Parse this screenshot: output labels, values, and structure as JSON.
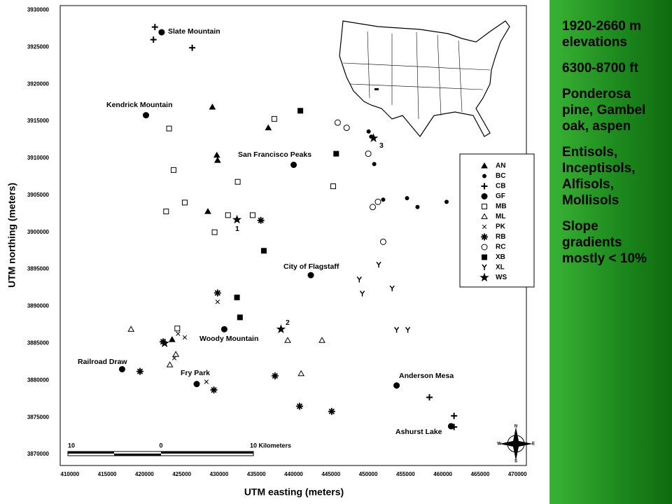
{
  "chart_data": {
    "type": "scatter",
    "xlabel": "UTM easting (meters)",
    "ylabel": "UTM northing (meters)",
    "xlim": [
      408700,
      471200
    ],
    "ylim": [
      3868500,
      3930600
    ],
    "xticks": [
      410000,
      415000,
      420000,
      425000,
      430000,
      435000,
      440000,
      445000,
      450000,
      455000,
      460000,
      465000,
      470000
    ],
    "yticks": [
      3870000,
      3875000,
      3880000,
      3885000,
      3890000,
      3895000,
      3900000,
      3905000,
      3910000,
      3915000,
      3920000,
      3925000,
      3930000
    ],
    "grid": false,
    "legend": "right",
    "series": [
      {
        "name": "AN",
        "color": "#000000",
        "marker": "triangle",
        "x": [
          429100,
          429700,
          429800,
          436600,
          428500,
          423700
        ],
        "values": [
          3916900,
          3910400,
          3909700,
          3914100,
          3902800,
          3885500
        ]
      },
      {
        "name": "BC",
        "color": "#000000",
        "marker": "dot",
        "x": [
          450050,
          450400,
          450800,
          452000,
          455200,
          456600,
          460500
        ],
        "values": [
          3913600,
          3912900,
          3909200,
          3904400,
          3904600,
          3903400,
          3904100
        ]
      },
      {
        "name": "CB",
        "color": "#000000",
        "marker": "plus",
        "x": [
          421400,
          421200,
          426400,
          458200,
          461500,
          461500
        ],
        "values": [
          3927700,
          3926000,
          3924900,
          3877700,
          3875200,
          3873700
        ]
      },
      {
        "name": "GF",
        "color": "#000000",
        "marker": "big-dot",
        "x": [
          422300,
          420200,
          440000,
          442300,
          430700,
          417000,
          427000,
          453800,
          461100
        ],
        "values": [
          3927000,
          3915800,
          3909100,
          3894200,
          3886900,
          3881500,
          3879500,
          3879300,
          3873800
        ]
      },
      {
        "name": "MB",
        "color": "#000000",
        "marker": "square-open",
        "x": [
          423300,
          423900,
          437400,
          432500,
          425400,
          422900,
          431200,
          434500,
          429400,
          445300,
          424400
        ],
        "values": [
          3914000,
          3908400,
          3915300,
          3906800,
          3904000,
          3902800,
          3902300,
          3902300,
          3900000,
          3906200,
          3887000
        ]
      },
      {
        "name": "ML",
        "color": "#000000",
        "marker": "triangle-open",
        "x": [
          418200,
          424200,
          423400,
          439200,
          443800,
          441000
        ],
        "values": [
          3886900,
          3883500,
          3882100,
          3885400,
          3885400,
          3880900
        ]
      },
      {
        "name": "PK",
        "color": "#000000",
        "marker": "x",
        "x": [
          429800,
          424500,
          425400,
          424000,
          428300
        ],
        "values": [
          3890600,
          3886300,
          3885800,
          3883000,
          3879800
        ]
      },
      {
        "name": "RB",
        "color": "#000000",
        "marker": "asterisk",
        "x": [
          435600,
          429800,
          422500,
          419400,
          437500,
          429300,
          440800,
          445100
        ],
        "values": [
          3901600,
          3891800,
          3885200,
          3881200,
          3880600,
          3878700,
          3876500,
          3875800
        ]
      },
      {
        "name": "RC",
        "color": "#000000",
        "marker": "circle-open",
        "x": [
          445900,
          447100,
          450000,
          451300,
          450600,
          452000
        ],
        "values": [
          3914800,
          3914100,
          3910600,
          3904100,
          3903400,
          3898700
        ]
      },
      {
        "name": "XB",
        "color": "#000000",
        "marker": "square",
        "x": [
          440900,
          445700,
          436000,
          432400,
          432800
        ],
        "values": [
          3916400,
          3910600,
          3897500,
          3891200,
          3888500
        ]
      },
      {
        "name": "XL",
        "color": "#000000",
        "marker": "y",
        "x": [
          448800,
          451400,
          449200,
          453200,
          453800,
          455300
        ],
        "values": [
          3893600,
          3895600,
          3891700,
          3892400,
          3886800,
          3886800
        ]
      },
      {
        "name": "WS",
        "color": "#000000",
        "marker": "star",
        "x": [
          450700,
          432400,
          438300,
          422700
        ],
        "values": [
          3912700,
          3901700,
          3886900,
          3885000
        ]
      }
    ],
    "annotations": [
      "Slate Mountain",
      "Kendrick Mountain",
      "San Francisco Peaks",
      "City of Flagstaff",
      "Woody Mountain",
      "Railroad Draw",
      "Fry Park",
      "Anderson Mesa",
      "Ashurst Lake",
      "1",
      "2",
      "3"
    ],
    "scale_bar": [
      "10",
      "0",
      "10 Kilometers"
    ],
    "compass": [
      "N",
      "E",
      "S",
      "W"
    ]
  },
  "side_panel": [
    "1920-2660 m elevations",
    "6300-8700 ft",
    "Ponderosa pine, Gambel oak, aspen",
    "Entisols, Inceptisols, Alfisols, Mollisols",
    "Slope gradients mostly < 10%"
  ]
}
